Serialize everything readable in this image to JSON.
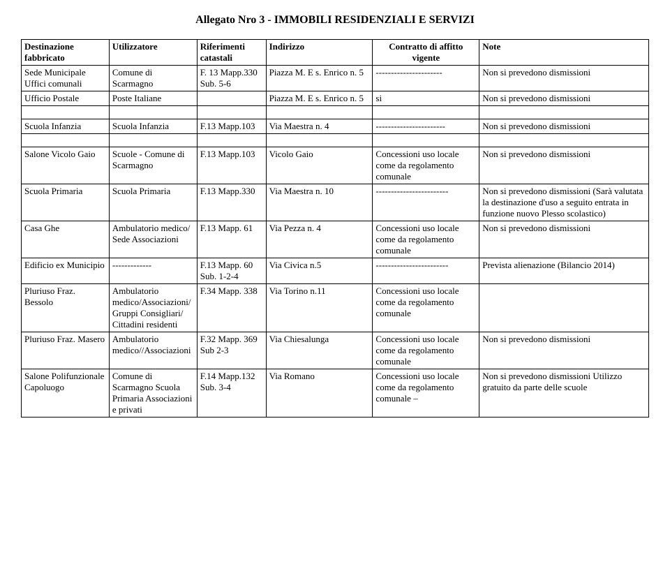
{
  "title": "Allegato Nro 3 - IMMOBILI RESIDENZIALI E SERVIZI",
  "headers": {
    "c1": "Destinazione fabbricato",
    "c2": "Utilizzatore",
    "c3": "Riferimenti catastali",
    "c4": "Indirizzo",
    "c5": "Contratto di affitto vigente",
    "c6": "Note"
  },
  "rows": [
    {
      "c1": "Sede Municipale Uffici comunali",
      "c2": "Comune di Scarmagno",
      "c3": "F. 13 Mapp.330 Sub. 5-6",
      "c4": "Piazza M. E s. Enrico n. 5",
      "c5": "----------------------",
      "c6": "Non si prevedono dismissioni"
    },
    {
      "c1": "Ufficio Postale",
      "c2": "Poste Italiane",
      "c3": "",
      "c4": "Piazza M. E s. Enrico n. 5",
      "c5": "si",
      "c6": "Non si prevedono dismissioni"
    },
    {
      "spacer": true
    },
    {
      "c1": "Scuola Infanzia",
      "c2": "Scuola Infanzia",
      "c3": "F.13 Mapp.103",
      "c4": "Via Maestra n. 4",
      "c5": "-----------------------",
      "c6": "Non si prevedono dismissioni"
    },
    {
      "spacer": true
    },
    {
      "c1": "Salone Vicolo Gaio",
      "c2": "Scuole - Comune di Scarmagno",
      "c3": "F.13 Mapp.103",
      "c4": "Vicolo Gaio",
      "c5": "Concessioni uso locale come da regolamento comunale",
      "c6": "Non si prevedono dismissioni"
    },
    {
      "c1": "Scuola Primaria",
      "c2": "Scuola Primaria",
      "c3": "F.13 Mapp.330",
      "c4": "Via Maestra n. 10",
      "c5": "------------------------",
      "c6": "Non si prevedono dismissioni (Sarà valutata la destinazione d'uso a seguito entrata in funzione nuovo Plesso scolastico)"
    },
    {
      "c1": "Casa Ghe",
      "c2": "Ambulatorio medico/ Sede Associazioni",
      "c3": "F.13 Mapp. 61",
      "c4": "Via Pezza n. 4",
      "c5": "Concessioni uso locale come da regolamento comunale",
      "c6": "Non si prevedono dismissioni"
    },
    {
      "c1": "Edificio ex Municipio",
      "c2": "-------------",
      "c3": "F.13 Mapp. 60 Sub. 1-2-4",
      "c4": "Via Civica n.5",
      "c5": "------------------------",
      "c6": "Prevista alienazione (Bilancio 2014)"
    },
    {
      "c1": "Pluriuso Fraz. Bessolo",
      "c2": "Ambulatorio medico/Associazioni/Gruppi Consigliari/ Cittadini residenti",
      "c3": "F.34 Mapp. 338",
      "c4": "Via Torino n.11",
      "c5": "Concessioni uso locale come da regolamento comunale",
      "c6": ""
    },
    {
      "c1": "Pluriuso Fraz. Masero",
      "c2": "Ambulatorio medico//Associazioni",
      "c3": "F.32 Mapp. 369 Sub 2-3",
      "c4": "Via Chiesalunga",
      "c5": "Concessioni uso locale come da regolamento comunale",
      "c6": "Non si prevedono dismissioni"
    },
    {
      "c1": "Salone Polifunzionale Capoluogo",
      "c2": "Comune di Scarmagno Scuola Primaria Associazioni e privati",
      "c3": "F.14 Mapp.132 Sub. 3-4",
      "c4": "Via Romano",
      "c5": "Concessioni uso locale come da regolamento comunale –",
      "c6": "Non si prevedono dismissioni Utilizzo gratuito da parte delle scuole"
    }
  ]
}
